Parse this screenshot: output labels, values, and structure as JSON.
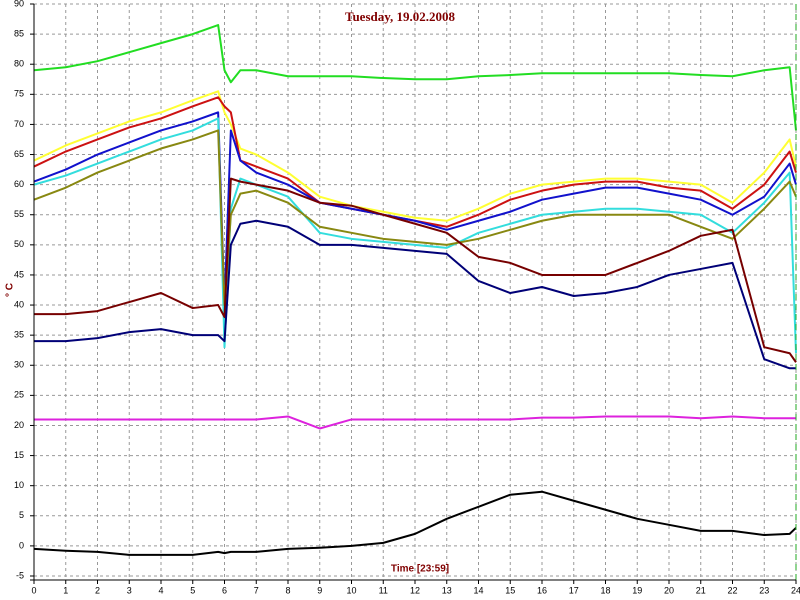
{
  "chart_data": {
    "type": "line",
    "title": "Tuesday, 19.02.2008",
    "y_label": "° C",
    "x_label": "Time [23:59]",
    "x": [
      0,
      1,
      2,
      3,
      4,
      5,
      5.8,
      6,
      6.2,
      6.5,
      7,
      8,
      9,
      10,
      11,
      12,
      13,
      14,
      15,
      16,
      17,
      18,
      19,
      20,
      21,
      22,
      23,
      23.8,
      24
    ],
    "xlim": [
      0,
      24
    ],
    "xticks": [
      0,
      1,
      2,
      3,
      4,
      5,
      6,
      7,
      8,
      9,
      10,
      11,
      12,
      13,
      14,
      15,
      16,
      17,
      18,
      19,
      20,
      21,
      22,
      23,
      24
    ],
    "ylim": [
      -5,
      90
    ],
    "yticks": [
      -5,
      0,
      5,
      10,
      15,
      20,
      25,
      30,
      35,
      40,
      45,
      50,
      55,
      60,
      65,
      70,
      75,
      80,
      85,
      90
    ],
    "grid": true,
    "series": [
      {
        "color": "#22dd22",
        "values": [
          79,
          79.5,
          80.5,
          82,
          83.5,
          85,
          86.5,
          79,
          77,
          79,
          79,
          78,
          78,
          78,
          77.7,
          77.5,
          77.5,
          78,
          78.2,
          78.5,
          78.5,
          78.5,
          78.5,
          78.5,
          78.2,
          78,
          79,
          79.5,
          69
        ]
      },
      {
        "color": "#ffff33",
        "values": [
          64,
          66.5,
          68.5,
          70.5,
          72,
          74,
          75.5,
          72,
          70,
          66,
          65,
          62,
          58,
          56.5,
          55.5,
          54.5,
          54,
          56,
          58.5,
          60,
          60.5,
          61,
          61,
          60.5,
          60,
          57,
          62,
          67.5,
          63
        ]
      },
      {
        "color": "#cc1111",
        "values": [
          63,
          65.5,
          67.5,
          69.5,
          71,
          73,
          74.5,
          73,
          72,
          64,
          63,
          61,
          57,
          56,
          55,
          54,
          53,
          55,
          57.5,
          59,
          60,
          60.5,
          60.5,
          59.5,
          59,
          56,
          60,
          65.5,
          62
        ]
      },
      {
        "color": "#1111cc",
        "values": [
          60.5,
          62.5,
          65,
          67,
          69,
          70.5,
          72,
          40,
          69,
          64,
          62,
          60,
          57,
          56,
          55,
          54,
          52.5,
          54,
          55.5,
          57.5,
          58.5,
          59.5,
          59.5,
          58.5,
          57.5,
          55,
          58,
          63.5,
          60
        ]
      },
      {
        "color": "#33dddd",
        "values": [
          60,
          61.5,
          63.5,
          65.5,
          67.5,
          69,
          71,
          33,
          56,
          61,
          60,
          58,
          52,
          51,
          50.5,
          50,
          49.5,
          52,
          53.5,
          55,
          55.5,
          56,
          56,
          55.5,
          55,
          52,
          57,
          62,
          32
        ]
      },
      {
        "color": "#888811",
        "values": [
          57.5,
          59.5,
          62,
          64,
          66,
          67.5,
          69,
          40,
          55,
          58.5,
          59,
          57,
          53,
          52,
          51,
          50.5,
          50,
          51,
          52.5,
          54,
          55,
          55,
          55,
          55,
          53,
          51,
          56,
          60.5,
          58
        ]
      },
      {
        "color": "#770000",
        "values": [
          38.5,
          38.5,
          39,
          40.5,
          42,
          39.5,
          40,
          38,
          61,
          60.5,
          60,
          59,
          57,
          56.5,
          55,
          53.5,
          52,
          48,
          47,
          45,
          45,
          45,
          47,
          49,
          51.5,
          52.5,
          33,
          32,
          30.5
        ]
      },
      {
        "color": "#000077",
        "values": [
          34,
          34,
          34.5,
          35.5,
          36,
          35,
          35,
          34,
          50,
          53.5,
          54,
          53,
          50,
          50,
          49.5,
          49,
          48.5,
          44,
          42,
          43,
          41.5,
          42,
          43,
          45,
          46,
          47,
          31,
          29.5,
          29.5
        ]
      },
      {
        "color": "#dd22dd",
        "values": [
          21,
          21,
          21,
          21,
          21,
          21,
          21,
          21,
          21,
          21,
          21,
          21.5,
          19.5,
          21,
          21,
          21,
          21,
          21,
          21,
          21.3,
          21.3,
          21.5,
          21.5,
          21.5,
          21.2,
          21.5,
          21.2,
          21.2,
          21.2
        ]
      },
      {
        "color": "#000000",
        "values": [
          -0.5,
          -0.8,
          -1,
          -1.5,
          -1.5,
          -1.5,
          -1,
          -1.2,
          -1,
          -1,
          -1,
          -0.5,
          -0.3,
          0,
          0.5,
          2,
          4.5,
          6.5,
          8.5,
          9,
          7.5,
          6,
          4.5,
          3.5,
          2.5,
          2.5,
          1.8,
          2,
          3
        ]
      }
    ]
  }
}
